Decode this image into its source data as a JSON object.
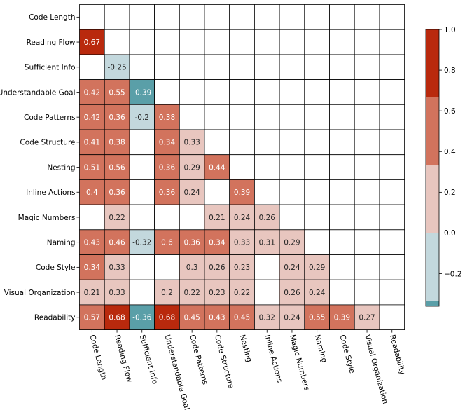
{
  "chart_data": {
    "type": "heatmap",
    "mask": "upper-triangle-and-diagonal-blank",
    "row_labels": [
      "Code Length",
      "Reading Flow",
      "Sufficient Info",
      "Understandable Goal",
      "Code Patterns",
      "Code Structure",
      "Nesting",
      "Inline Actions",
      "Magic Numbers",
      "Naming",
      "Code Style",
      "Visual Organization",
      "Readability"
    ],
    "col_labels": [
      "Code Length",
      "Reading Flow",
      "Sufficient Info",
      "Understandable Goal",
      "Code Patterns",
      "Code Structure",
      "Nesting",
      "Inline Actions",
      "Magic Numbers",
      "Naming",
      "Code Style",
      "Visual Organization",
      "Readability"
    ],
    "values": [
      [
        null,
        null,
        null,
        null,
        null,
        null,
        null,
        null,
        null,
        null,
        null,
        null,
        null
      ],
      [
        0.67,
        null,
        null,
        null,
        null,
        null,
        null,
        null,
        null,
        null,
        null,
        null,
        null
      ],
      [
        null,
        -0.25,
        null,
        null,
        null,
        null,
        null,
        null,
        null,
        null,
        null,
        null,
        null
      ],
      [
        0.42,
        0.55,
        -0.39,
        null,
        null,
        null,
        null,
        null,
        null,
        null,
        null,
        null,
        null
      ],
      [
        0.42,
        0.36,
        -0.2,
        0.38,
        null,
        null,
        null,
        null,
        null,
        null,
        null,
        null,
        null
      ],
      [
        0.41,
        0.38,
        null,
        0.34,
        0.33,
        null,
        null,
        null,
        null,
        null,
        null,
        null,
        null
      ],
      [
        0.51,
        0.56,
        null,
        0.36,
        0.29,
        0.44,
        null,
        null,
        null,
        null,
        null,
        null,
        null
      ],
      [
        0.4,
        0.36,
        null,
        0.36,
        0.24,
        null,
        0.39,
        null,
        null,
        null,
        null,
        null,
        null
      ],
      [
        null,
        0.22,
        null,
        null,
        null,
        0.21,
        0.24,
        0.26,
        null,
        null,
        null,
        null,
        null
      ],
      [
        0.43,
        0.46,
        -0.32,
        0.6,
        0.36,
        0.34,
        0.33,
        0.31,
        0.29,
        null,
        null,
        null,
        null
      ],
      [
        0.34,
        0.33,
        null,
        null,
        0.3,
        0.26,
        0.23,
        null,
        0.24,
        0.29,
        null,
        null,
        null
      ],
      [
        0.21,
        0.33,
        null,
        0.2,
        0.22,
        0.23,
        0.22,
        null,
        0.26,
        0.24,
        null,
        null,
        null
      ],
      [
        0.57,
        0.68,
        -0.36,
        0.68,
        0.45,
        0.43,
        0.45,
        0.32,
        0.24,
        0.55,
        0.39,
        0.27,
        null
      ]
    ],
    "colorbar": {
      "ticks": [
        1.0,
        0.8,
        0.6,
        0.4,
        0.2,
        0.0,
        -0.2
      ],
      "tick_labels": [
        "1.0",
        "0.8",
        "0.6",
        "0.4",
        "0.2",
        "0.0",
        "−0.2"
      ],
      "vmin": -0.36,
      "vmax": 1.0,
      "bands": [
        {
          "from": 0.667,
          "to": 1.0,
          "color": "#b9290d"
        },
        {
          "from": 0.333,
          "to": 0.667,
          "color": "#d2735d"
        },
        {
          "from": 0.0,
          "to": 0.333,
          "color": "#e8c6bf"
        },
        {
          "from": -0.333,
          "to": 0.0,
          "color": "#c3d8dd"
        },
        {
          "from": -0.36,
          "to": -0.333,
          "color": "#5a9fa8"
        }
      ]
    },
    "grid": true,
    "legend_placement": "right"
  }
}
